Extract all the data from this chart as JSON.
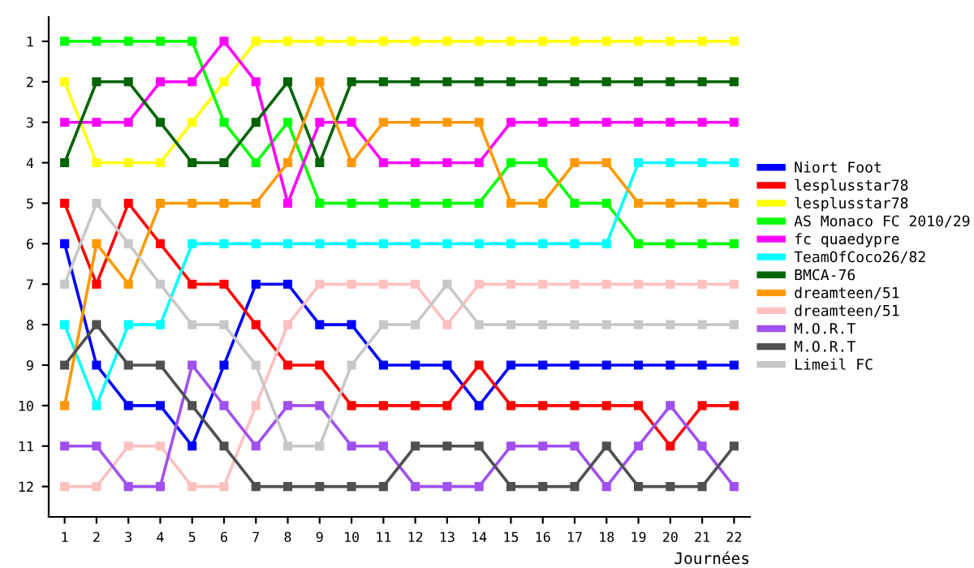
{
  "chart_data": {
    "type": "line",
    "xlabel": "Journées",
    "x": [
      1,
      2,
      3,
      4,
      5,
      6,
      7,
      8,
      9,
      10,
      11,
      12,
      13,
      14,
      15,
      16,
      17,
      18,
      19,
      20,
      21,
      22
    ],
    "xlim": [
      0.5,
      22.5
    ],
    "xticks": [
      1,
      2,
      3,
      4,
      5,
      6,
      7,
      8,
      9,
      10,
      11,
      12,
      13,
      14,
      15,
      16,
      17,
      18,
      19,
      20,
      21,
      22
    ],
    "ylim": [
      12.75,
      0.4
    ],
    "yticks": [
      1,
      2,
      3,
      4,
      5,
      6,
      7,
      8,
      9,
      10,
      11,
      12
    ],
    "grid": false,
    "legend": "right",
    "marker": "square",
    "line_style": "solid",
    "series": [
      {
        "name": "Niort Foot",
        "color": "#0000ff",
        "values": [
          6,
          9,
          10,
          10,
          11,
          9,
          7,
          7,
          8,
          8,
          9,
          9,
          9,
          10,
          9,
          9,
          9,
          9,
          9,
          9,
          9,
          9
        ]
      },
      {
        "name": "lesplusstar78",
        "color": "#ff0000",
        "values": [
          5,
          7,
          5,
          6,
          7,
          7,
          8,
          9,
          9,
          10,
          10,
          10,
          10,
          9,
          10,
          10,
          10,
          10,
          10,
          11,
          10,
          10
        ]
      },
      {
        "name": "lesplusstar78",
        "color": "#ffff00",
        "values": [
          2,
          4,
          4,
          4,
          3,
          2,
          1,
          1,
          1,
          1,
          1,
          1,
          1,
          1,
          1,
          1,
          1,
          1,
          1,
          1,
          1,
          1
        ]
      },
      {
        "name": "AS Monaco FC 2010/29",
        "color": "#00ff00",
        "values": [
          1,
          1,
          1,
          1,
          1,
          3,
          4,
          3,
          5,
          5,
          5,
          5,
          5,
          5,
          4,
          4,
          5,
          5,
          6,
          6,
          6,
          6
        ]
      },
      {
        "name": "fc quaedypre",
        "color": "#ff00ff",
        "values": [
          3,
          3,
          3,
          2,
          2,
          1,
          2,
          5,
          3,
          3,
          4,
          4,
          4,
          4,
          3,
          3,
          3,
          3,
          3,
          3,
          3,
          3
        ]
      },
      {
        "name": "TeamOfCoco26/82",
        "color": "#00ffff",
        "values": [
          8,
          10,
          8,
          8,
          6,
          6,
          6,
          6,
          6,
          6,
          6,
          6,
          6,
          6,
          6,
          6,
          6,
          6,
          4,
          4,
          4,
          4
        ]
      },
      {
        "name": "BMCA-76",
        "color": "#006400",
        "values": [
          4,
          2,
          2,
          3,
          4,
          4,
          3,
          2,
          4,
          2,
          2,
          2,
          2,
          2,
          2,
          2,
          2,
          2,
          2,
          2,
          2,
          2
        ]
      },
      {
        "name": "dreamteen/51",
        "color": "#ff9900",
        "values": [
          10,
          6,
          7,
          5,
          5,
          5,
          5,
          4,
          2,
          4,
          3,
          3,
          3,
          3,
          5,
          5,
          4,
          4,
          5,
          5,
          5,
          5
        ]
      },
      {
        "name": "dreamteen/51",
        "color": "#ffc0c0",
        "values": [
          12,
          12,
          11,
          11,
          12,
          12,
          10,
          8,
          7,
          7,
          7,
          7,
          8,
          7,
          7,
          7,
          7,
          7,
          7,
          7,
          7,
          7
        ]
      },
      {
        "name": "M.O.R.T",
        "color": "#a050f0",
        "values": [
          11,
          11,
          12,
          12,
          9,
          10,
          11,
          10,
          10,
          11,
          11,
          12,
          12,
          12,
          11,
          11,
          11,
          12,
          11,
          10,
          11,
          12
        ]
      },
      {
        "name": "M.O.R.T",
        "color": "#505050",
        "values": [
          9,
          8,
          9,
          9,
          10,
          11,
          12,
          12,
          12,
          12,
          12,
          11,
          11,
          11,
          12,
          12,
          12,
          11,
          12,
          12,
          12,
          11
        ]
      },
      {
        "name": "Limeil FC",
        "color": "#c8c8c8",
        "values": [
          7,
          5,
          6,
          7,
          8,
          8,
          9,
          11,
          11,
          9,
          8,
          8,
          7,
          8,
          8,
          8,
          8,
          8,
          8,
          8,
          8,
          8
        ]
      }
    ]
  }
}
